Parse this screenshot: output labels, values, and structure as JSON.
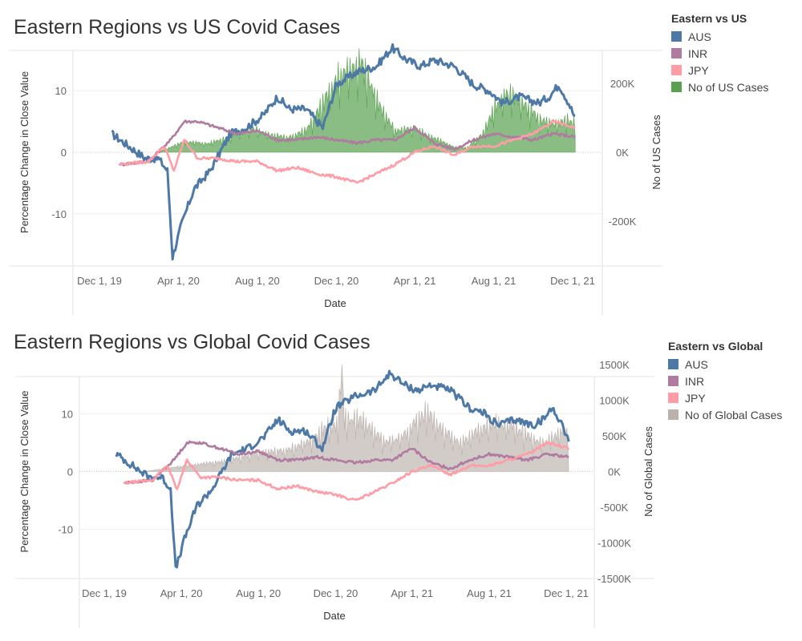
{
  "colors": {
    "AUS": "#4e79a7",
    "INR": "#b07aa1",
    "JPY": "#ff9da7",
    "us_cases": "#59a14f",
    "global_cases": "#bab0ac"
  },
  "chart_data": [
    {
      "type": "line",
      "title": "Eastern Regions vs US Covid Cases",
      "xlabel": "Date",
      "ylabel": "Percentage Change in Close Value",
      "y2label": "No of US Cases",
      "x_tick_labels": [
        "Dec 1, 19",
        "Apr 1, 20",
        "Aug 1, 20",
        "Dec 1, 20",
        "Apr 1, 21",
        "Aug 1, 21",
        "Dec 1, 21"
      ],
      "y_tick_labels": [
        "10",
        "0",
        "-10"
      ],
      "y2_tick_labels": [
        "200K",
        "0K",
        "-200K"
      ],
      "legend_title": "Eastern vs US",
      "legend": [
        "AUS",
        "INR",
        "JPY",
        "No of US Cases"
      ],
      "ylim": [
        -18.5,
        18.5
      ],
      "y2lim": [
        -330000,
        330000
      ],
      "series": [
        {
          "name": "AUS",
          "x": [
            "2019-12-20",
            "2020-01-15",
            "2020-02-10",
            "2020-03-01",
            "2020-03-15",
            "2020-03-23",
            "2020-04-05",
            "2020-04-25",
            "2020-05-20",
            "2020-06-20",
            "2020-07-15",
            "2020-08-10",
            "2020-09-01",
            "2020-09-20",
            "2020-10-15",
            "2020-11-10",
            "2020-12-01",
            "2021-01-01",
            "2021-02-01",
            "2021-02-25",
            "2021-03-20",
            "2021-04-10",
            "2021-05-01",
            "2021-06-01",
            "2021-07-01",
            "2021-07-25",
            "2021-08-15",
            "2021-09-10",
            "2021-10-10",
            "2021-10-25",
            "2021-11-10",
            "2021-11-25",
            "2021-12-05"
          ],
          "y": [
            3,
            1,
            -1,
            -1,
            -3,
            -17,
            -12,
            -6,
            -3,
            3,
            4,
            6,
            9,
            7,
            7,
            4,
            11,
            13,
            14,
            17,
            15,
            14,
            15,
            14,
            11,
            10,
            8,
            9,
            8,
            9,
            11,
            8,
            5.5
          ]
        },
        {
          "name": "INR",
          "x": [
            "2020-01-01",
            "2020-02-15",
            "2020-03-20",
            "2020-04-10",
            "2020-05-01",
            "2020-06-01",
            "2020-07-01",
            "2020-08-01",
            "2020-09-01",
            "2020-10-01",
            "2020-11-01",
            "2020-12-01",
            "2021-01-01",
            "2021-02-01",
            "2021-03-01",
            "2021-04-01",
            "2021-05-01",
            "2021-06-01",
            "2021-07-01",
            "2021-08-01",
            "2021-09-01",
            "2021-10-01",
            "2021-11-01",
            "2021-12-05"
          ],
          "y": [
            -2,
            -1.5,
            2,
            5,
            5,
            4,
            3,
            3.5,
            2,
            2,
            2.5,
            2,
            1.5,
            2,
            2,
            4,
            1.5,
            0.5,
            2,
            3,
            2.5,
            2,
            3,
            2.5
          ]
        },
        {
          "name": "JPY",
          "x": [
            "2020-01-01",
            "2020-02-15",
            "2020-03-10",
            "2020-03-25",
            "2020-04-10",
            "2020-05-01",
            "2020-06-01",
            "2020-07-01",
            "2020-08-01",
            "2020-09-01",
            "2020-10-01",
            "2020-11-01",
            "2020-12-01",
            "2021-01-01",
            "2021-02-01",
            "2021-03-01",
            "2021-04-01",
            "2021-05-01",
            "2021-06-01",
            "2021-07-01",
            "2021-08-01",
            "2021-09-01",
            "2021-10-01",
            "2021-11-01",
            "2021-12-05"
          ],
          "y": [
            -2,
            -1.5,
            1,
            -3,
            2,
            -1,
            -1,
            -1.5,
            -1.5,
            -3,
            -2.5,
            -3.5,
            -4,
            -5,
            -3.5,
            -2,
            0,
            1,
            -0.5,
            1,
            1,
            2,
            3,
            5,
            4
          ]
        },
        {
          "name": "No of US Cases",
          "x": [
            "2020-03-01",
            "2020-04-10",
            "2020-05-15",
            "2020-06-15",
            "2020-07-20",
            "2020-08-20",
            "2020-09-15",
            "2020-10-15",
            "2020-11-15",
            "2020-12-05",
            "2021-01-08",
            "2021-02-01",
            "2021-03-01",
            "2021-04-01",
            "2021-05-01",
            "2021-06-01",
            "2021-06-20",
            "2021-07-15",
            "2021-08-01",
            "2021-08-20",
            "2021-09-05",
            "2021-09-20",
            "2021-10-10",
            "2021-11-01",
            "2021-11-20",
            "2021-12-05"
          ],
          "y": [
            0,
            30000,
            24000,
            40000,
            68000,
            50000,
            40000,
            60000,
            150000,
            210000,
            250000,
            150000,
            60000,
            65000,
            40000,
            14000,
            12000,
            50000,
            120000,
            160000,
            150000,
            130000,
            90000,
            80000,
            90000,
            80000
          ]
        }
      ]
    },
    {
      "type": "line",
      "title": "Eastern Regions vs Global Covid Cases",
      "xlabel": "Date",
      "ylabel": "Percentage Change in Close Value",
      "y2label": "No of Global Cases",
      "x_tick_labels": [
        "Dec 1, 19",
        "Apr 1, 20",
        "Aug 1, 20",
        "Dec 1, 20",
        "Apr 1, 21",
        "Aug 1, 21",
        "Dec 1, 21"
      ],
      "y_tick_labels": [
        "10",
        "0",
        "-10"
      ],
      "y2_tick_labels": [
        "1500K",
        "1000K",
        "500K",
        "0K",
        "-500K",
        "-1000K",
        "-1500K"
      ],
      "legend_title": "Eastern vs Global",
      "legend": [
        "AUS",
        "INR",
        "JPY",
        "No of Global Cases"
      ],
      "ylim": [
        -18.5,
        18.5
      ],
      "y2lim": [
        -1500000,
        1500000
      ],
      "series": [
        {
          "name": "AUS",
          "x": [
            "2019-12-20",
            "2020-01-15",
            "2020-02-10",
            "2020-03-01",
            "2020-03-15",
            "2020-03-23",
            "2020-04-05",
            "2020-04-25",
            "2020-05-20",
            "2020-06-20",
            "2020-07-15",
            "2020-08-10",
            "2020-09-01",
            "2020-09-20",
            "2020-10-15",
            "2020-11-10",
            "2020-12-01",
            "2021-01-01",
            "2021-02-01",
            "2021-02-25",
            "2021-03-20",
            "2021-04-10",
            "2021-05-01",
            "2021-06-01",
            "2021-07-01",
            "2021-07-25",
            "2021-08-15",
            "2021-09-10",
            "2021-10-10",
            "2021-10-25",
            "2021-11-10",
            "2021-11-25",
            "2021-12-05"
          ],
          "y": [
            3,
            1,
            -1,
            -1,
            -3,
            -17,
            -12,
            -6,
            -3,
            3,
            4,
            6,
            9,
            7,
            7,
            4,
            11,
            13,
            14,
            17,
            15,
            14,
            15,
            14,
            11,
            10,
            8,
            9,
            8,
            9,
            11,
            8,
            5.5
          ]
        },
        {
          "name": "INR",
          "x": [
            "2020-01-01",
            "2020-02-15",
            "2020-03-20",
            "2020-04-10",
            "2020-05-01",
            "2020-06-01",
            "2020-07-01",
            "2020-08-01",
            "2020-09-01",
            "2020-10-01",
            "2020-11-01",
            "2020-12-01",
            "2021-01-01",
            "2021-02-01",
            "2021-03-01",
            "2021-04-01",
            "2021-05-01",
            "2021-06-01",
            "2021-07-01",
            "2021-08-01",
            "2021-09-01",
            "2021-10-01",
            "2021-11-01",
            "2021-12-05"
          ],
          "y": [
            -2,
            -1.5,
            2,
            5,
            5,
            4,
            3,
            3.5,
            2,
            2,
            2.5,
            2,
            1.5,
            2,
            2,
            4,
            1.5,
            0.5,
            2,
            3,
            2.5,
            2,
            3,
            2.5
          ]
        },
        {
          "name": "JPY",
          "x": [
            "2020-01-01",
            "2020-02-15",
            "2020-03-10",
            "2020-03-25",
            "2020-04-10",
            "2020-05-01",
            "2020-06-01",
            "2020-07-01",
            "2020-08-01",
            "2020-09-01",
            "2020-10-01",
            "2020-11-01",
            "2020-12-01",
            "2021-01-01",
            "2021-02-01",
            "2021-03-01",
            "2021-04-01",
            "2021-05-01",
            "2021-06-01",
            "2021-07-01",
            "2021-08-01",
            "2021-09-01",
            "2021-10-01",
            "2021-11-01",
            "2021-12-05"
          ],
          "y": [
            -2,
            -1.5,
            1,
            -3,
            2,
            -1,
            -1,
            -1.5,
            -1.5,
            -3,
            -2.5,
            -3.5,
            -4,
            -5,
            -3.5,
            -2,
            0,
            1,
            -0.5,
            1,
            1,
            2,
            3,
            5,
            4
          ]
        },
        {
          "name": "No of Global Cases",
          "x": [
            "2020-02-01",
            "2020-04-10",
            "2020-06-15",
            "2020-08-01",
            "2020-09-15",
            "2020-10-20",
            "2020-11-15",
            "2020-12-05",
            "2020-12-10",
            "2020-12-15",
            "2021-01-08",
            "2021-02-15",
            "2021-03-15",
            "2021-04-10",
            "2021-04-25",
            "2021-05-15",
            "2021-06-15",
            "2021-07-15",
            "2021-08-15",
            "2021-09-10",
            "2021-10-10",
            "2021-11-01",
            "2021-11-25",
            "2021-12-05"
          ],
          "y": [
            0,
            80000,
            150000,
            260000,
            290000,
            400000,
            600000,
            650000,
            1480000,
            700000,
            720000,
            400000,
            450000,
            700000,
            800000,
            600000,
            380000,
            550000,
            650000,
            600000,
            420000,
            400000,
            550000,
            500000
          ]
        }
      ]
    }
  ]
}
